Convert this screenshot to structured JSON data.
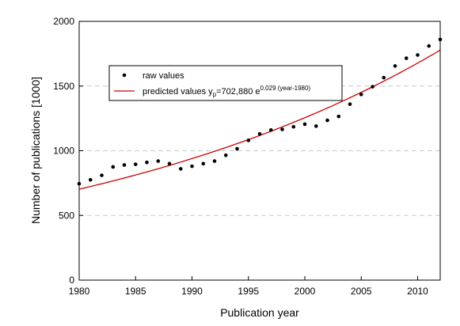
{
  "chart_data": {
    "type": "scatter",
    "xlabel": "Publication year",
    "ylabel": "Number of publications [1000]",
    "xlim": [
      1980,
      2012
    ],
    "ylim": [
      0,
      2000
    ],
    "xticks": [
      1980,
      1985,
      1990,
      1995,
      2000,
      2005,
      2010
    ],
    "yticks": [
      0,
      500,
      1000,
      1500,
      2000
    ],
    "grid": "horizontal dashed",
    "legend_position": "upper-left",
    "series": [
      {
        "name": "raw values",
        "kind": "points",
        "color": "#000000",
        "x": [
          1980,
          1981,
          1982,
          1983,
          1984,
          1985,
          1986,
          1987,
          1988,
          1989,
          1990,
          1991,
          1992,
          1993,
          1994,
          1995,
          1996,
          1997,
          1998,
          1999,
          2000,
          2001,
          2002,
          2003,
          2004,
          2005,
          2006,
          2007,
          2008,
          2009,
          2010,
          2011,
          2012
        ],
        "y": [
          745,
          775,
          810,
          875,
          890,
          895,
          910,
          920,
          900,
          860,
          880,
          900,
          920,
          965,
          1015,
          1080,
          1130,
          1160,
          1165,
          1185,
          1205,
          1190,
          1235,
          1265,
          1360,
          1435,
          1495,
          1565,
          1655,
          1715,
          1740,
          1810,
          1860
        ]
      },
      {
        "name": "predicted values",
        "kind": "curve",
        "color": "#cc0000",
        "model": {
          "a": 702.88,
          "b": 0.029,
          "x0": 1980
        }
      }
    ],
    "legend": [
      {
        "label": "raw values"
      },
      {
        "label_pre": "predicted values y",
        "label_sub": "p",
        "label_mid": "=702,880 e",
        "label_sup": "0.029 (year-1980)"
      }
    ]
  }
}
